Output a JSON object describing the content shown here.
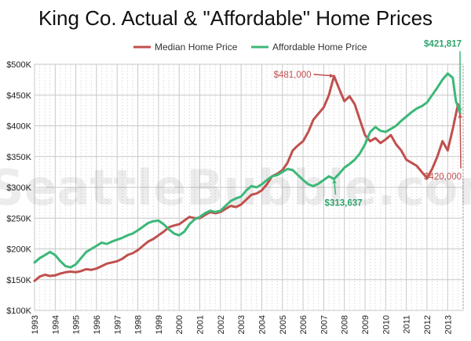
{
  "chart_data": {
    "type": "line",
    "title": "King Co. Actual & \"Affordable\" Home Prices",
    "xlabel": "",
    "ylabel": "",
    "ylim": [
      100000,
      500000
    ],
    "xlim": [
      1993,
      2013.75
    ],
    "y_ticks": [
      "$100K",
      "$150K",
      "$200K",
      "$250K",
      "$300K",
      "$350K",
      "$400K",
      "$450K",
      "$500K"
    ],
    "y_tick_values": [
      100000,
      150000,
      200000,
      250000,
      300000,
      350000,
      400000,
      450000,
      500000
    ],
    "x_ticks": [
      "1993",
      "1994",
      "1995",
      "1996",
      "1997",
      "1998",
      "1999",
      "2000",
      "2001",
      "2002",
      "2003",
      "2004",
      "2005",
      "2006",
      "2007",
      "2008",
      "2009",
      "2010",
      "2011",
      "2012",
      "2013"
    ],
    "grid": true,
    "legend_position": "top-center",
    "watermark": "SeattleBubble.com",
    "series": [
      {
        "name": "Median Home Price",
        "color": "#c0504d",
        "points": [
          [
            1993.0,
            148000
          ],
          [
            1993.25,
            155000
          ],
          [
            1993.5,
            158000
          ],
          [
            1993.75,
            156000
          ],
          [
            1994.0,
            157000
          ],
          [
            1994.25,
            160000
          ],
          [
            1994.5,
            162000
          ],
          [
            1994.75,
            163000
          ],
          [
            1995.0,
            162000
          ],
          [
            1995.25,
            164000
          ],
          [
            1995.5,
            167000
          ],
          [
            1995.75,
            166000
          ],
          [
            1996.0,
            168000
          ],
          [
            1996.25,
            172000
          ],
          [
            1996.5,
            176000
          ],
          [
            1996.75,
            178000
          ],
          [
            1997.0,
            180000
          ],
          [
            1997.25,
            184000
          ],
          [
            1997.5,
            190000
          ],
          [
            1997.75,
            193000
          ],
          [
            1998.0,
            198000
          ],
          [
            1998.25,
            205000
          ],
          [
            1998.5,
            212000
          ],
          [
            1998.75,
            216000
          ],
          [
            1999.0,
            222000
          ],
          [
            1999.25,
            228000
          ],
          [
            1999.5,
            235000
          ],
          [
            1999.75,
            238000
          ],
          [
            2000.0,
            240000
          ],
          [
            2000.25,
            246000
          ],
          [
            2000.5,
            252000
          ],
          [
            2000.75,
            250000
          ],
          [
            2001.0,
            250000
          ],
          [
            2001.25,
            255000
          ],
          [
            2001.5,
            260000
          ],
          [
            2001.75,
            258000
          ],
          [
            2002.0,
            260000
          ],
          [
            2002.25,
            265000
          ],
          [
            2002.5,
            270000
          ],
          [
            2002.75,
            268000
          ],
          [
            2003.0,
            272000
          ],
          [
            2003.25,
            280000
          ],
          [
            2003.5,
            288000
          ],
          [
            2003.75,
            290000
          ],
          [
            2004.0,
            295000
          ],
          [
            2004.25,
            305000
          ],
          [
            2004.5,
            318000
          ],
          [
            2004.75,
            322000
          ],
          [
            2005.0,
            328000
          ],
          [
            2005.25,
            340000
          ],
          [
            2005.5,
            360000
          ],
          [
            2005.75,
            368000
          ],
          [
            2006.0,
            375000
          ],
          [
            2006.25,
            390000
          ],
          [
            2006.5,
            410000
          ],
          [
            2006.75,
            420000
          ],
          [
            2007.0,
            430000
          ],
          [
            2007.25,
            450000
          ],
          [
            2007.5,
            481000
          ],
          [
            2007.75,
            460000
          ],
          [
            2008.0,
            440000
          ],
          [
            2008.25,
            448000
          ],
          [
            2008.5,
            435000
          ],
          [
            2008.75,
            410000
          ],
          [
            2009.0,
            385000
          ],
          [
            2009.25,
            375000
          ],
          [
            2009.5,
            380000
          ],
          [
            2009.75,
            372000
          ],
          [
            2010.0,
            378000
          ],
          [
            2010.25,
            385000
          ],
          [
            2010.5,
            370000
          ],
          [
            2010.75,
            360000
          ],
          [
            2011.0,
            345000
          ],
          [
            2011.25,
            340000
          ],
          [
            2011.5,
            335000
          ],
          [
            2011.75,
            325000
          ],
          [
            2012.0,
            315000
          ],
          [
            2012.25,
            330000
          ],
          [
            2012.5,
            350000
          ],
          [
            2012.75,
            375000
          ],
          [
            2013.0,
            360000
          ],
          [
            2013.25,
            395000
          ],
          [
            2013.5,
            435000
          ],
          [
            2013.6,
            420000
          ]
        ]
      },
      {
        "name": "Affordable Home Price",
        "color": "#3cb878",
        "points": [
          [
            1993.0,
            178000
          ],
          [
            1993.25,
            185000
          ],
          [
            1993.5,
            190000
          ],
          [
            1993.75,
            195000
          ],
          [
            1994.0,
            190000
          ],
          [
            1994.25,
            180000
          ],
          [
            1994.5,
            172000
          ],
          [
            1994.75,
            170000
          ],
          [
            1995.0,
            175000
          ],
          [
            1995.25,
            185000
          ],
          [
            1995.5,
            195000
          ],
          [
            1995.75,
            200000
          ],
          [
            1996.0,
            205000
          ],
          [
            1996.25,
            210000
          ],
          [
            1996.5,
            208000
          ],
          [
            1996.75,
            212000
          ],
          [
            1997.0,
            215000
          ],
          [
            1997.25,
            218000
          ],
          [
            1997.5,
            222000
          ],
          [
            1997.75,
            225000
          ],
          [
            1998.0,
            230000
          ],
          [
            1998.25,
            236000
          ],
          [
            1998.5,
            242000
          ],
          [
            1998.75,
            245000
          ],
          [
            1999.0,
            246000
          ],
          [
            1999.25,
            240000
          ],
          [
            1999.5,
            232000
          ],
          [
            1999.75,
            225000
          ],
          [
            2000.0,
            222000
          ],
          [
            2000.25,
            228000
          ],
          [
            2000.5,
            240000
          ],
          [
            2000.75,
            248000
          ],
          [
            2001.0,
            252000
          ],
          [
            2001.25,
            258000
          ],
          [
            2001.5,
            262000
          ],
          [
            2001.75,
            260000
          ],
          [
            2002.0,
            262000
          ],
          [
            2002.25,
            270000
          ],
          [
            2002.5,
            278000
          ],
          [
            2002.75,
            282000
          ],
          [
            2003.0,
            285000
          ],
          [
            2003.25,
            295000
          ],
          [
            2003.5,
            302000
          ],
          [
            2003.75,
            300000
          ],
          [
            2004.0,
            305000
          ],
          [
            2004.25,
            312000
          ],
          [
            2004.5,
            318000
          ],
          [
            2004.75,
            320000
          ],
          [
            2005.0,
            325000
          ],
          [
            2005.25,
            330000
          ],
          [
            2005.5,
            328000
          ],
          [
            2005.75,
            320000
          ],
          [
            2006.0,
            312000
          ],
          [
            2006.25,
            305000
          ],
          [
            2006.5,
            302000
          ],
          [
            2006.75,
            306000
          ],
          [
            2007.0,
            312000
          ],
          [
            2007.25,
            318000
          ],
          [
            2007.5,
            313637
          ],
          [
            2007.75,
            322000
          ],
          [
            2008.0,
            332000
          ],
          [
            2008.25,
            338000
          ],
          [
            2008.5,
            345000
          ],
          [
            2008.75,
            355000
          ],
          [
            2009.0,
            370000
          ],
          [
            2009.25,
            390000
          ],
          [
            2009.5,
            398000
          ],
          [
            2009.75,
            392000
          ],
          [
            2010.0,
            390000
          ],
          [
            2010.25,
            395000
          ],
          [
            2010.5,
            400000
          ],
          [
            2010.75,
            408000
          ],
          [
            2011.0,
            415000
          ],
          [
            2011.25,
            422000
          ],
          [
            2011.5,
            428000
          ],
          [
            2011.75,
            432000
          ],
          [
            2012.0,
            438000
          ],
          [
            2012.25,
            450000
          ],
          [
            2012.5,
            462000
          ],
          [
            2012.75,
            475000
          ],
          [
            2013.0,
            485000
          ],
          [
            2013.25,
            478000
          ],
          [
            2013.4,
            440000
          ],
          [
            2013.6,
            421817
          ]
        ]
      }
    ],
    "annotations": [
      {
        "text": "$481,000",
        "series": 0,
        "x": 2007.5,
        "y": 481000
      },
      {
        "text": "$313,637",
        "series": 1,
        "x": 2007.5,
        "y": 313637
      },
      {
        "text": "$421,817",
        "series": 1,
        "x": 2013.6,
        "y": 421817
      },
      {
        "text": "$420,000",
        "series": 0,
        "x": 2013.6,
        "y": 420000
      }
    ]
  }
}
